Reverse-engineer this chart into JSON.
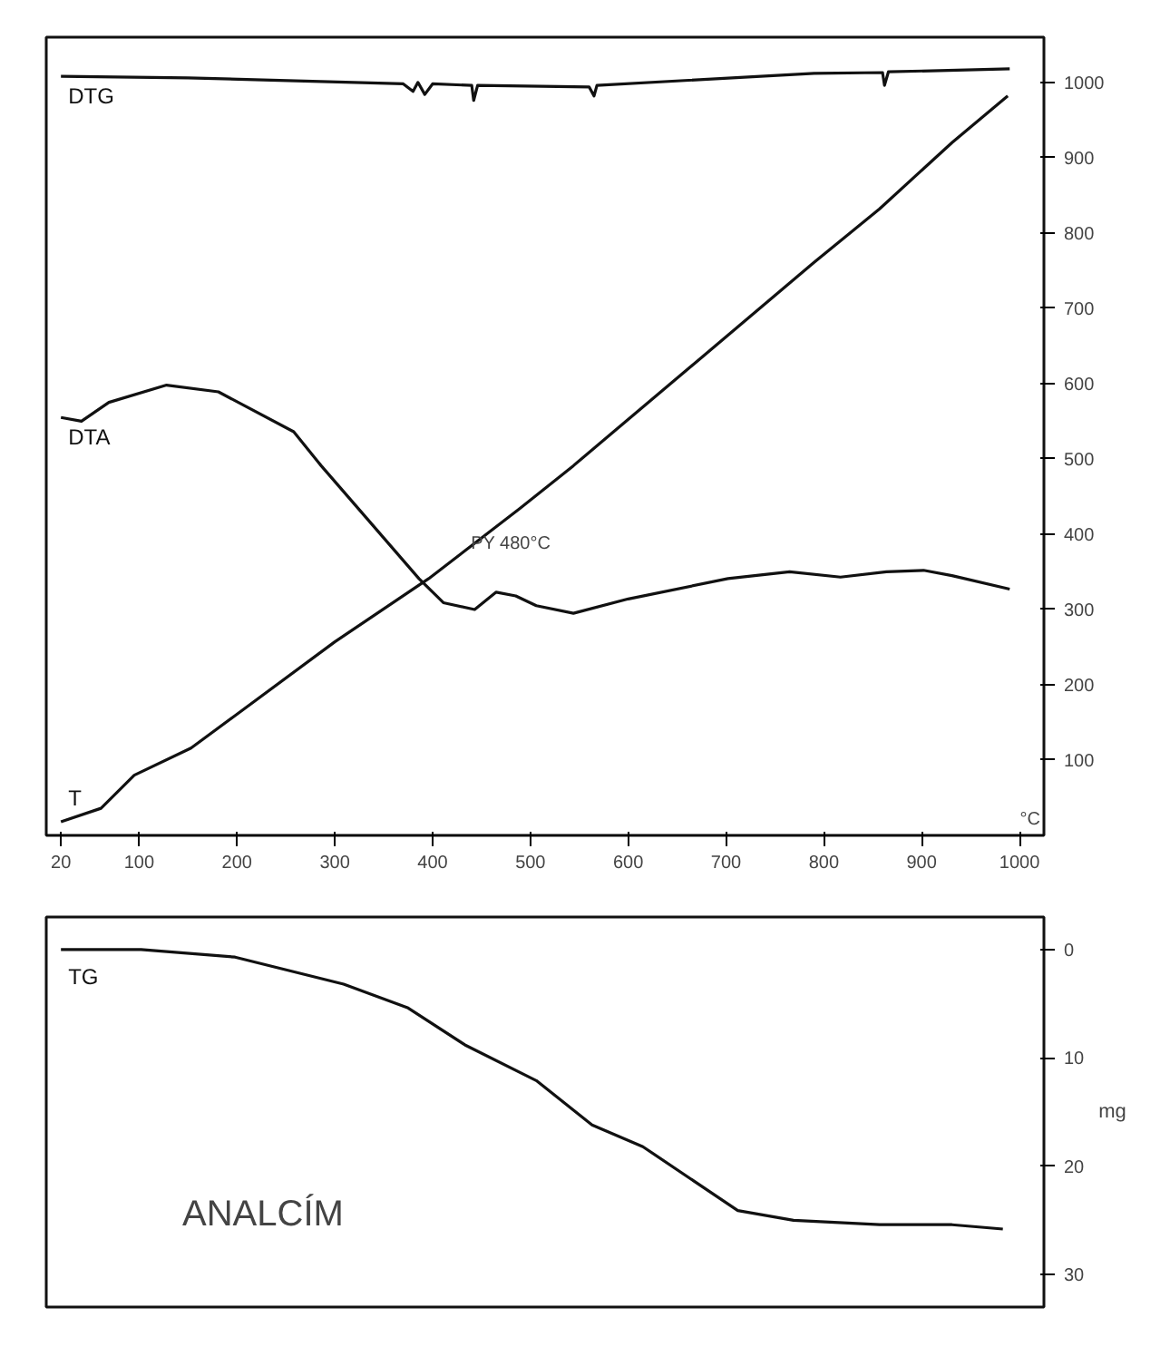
{
  "chart_data": [
    {
      "type": "line",
      "xlabel": "°C",
      "xlim": [
        5,
        1025
      ],
      "xticks": [
        20,
        100,
        200,
        300,
        400,
        500,
        600,
        700,
        800,
        900,
        1000
      ],
      "ylim": [
        0,
        1060
      ],
      "yticks": [
        100,
        200,
        300,
        400,
        500,
        600,
        700,
        800,
        900,
        1000
      ],
      "grid": false,
      "legend": false,
      "line_style": "solid",
      "marker": "none",
      "annotations": [
        {
          "text": "PY 480°C",
          "x": 480,
          "y": 330
        }
      ],
      "series": [
        {
          "name": "DTG",
          "color": "#111111",
          "x": [
            20,
            150,
            370,
            380,
            385,
            392,
            400,
            440,
            442,
            446,
            560,
            565,
            568,
            790,
            860,
            862,
            866,
            990
          ],
          "values": [
            1008,
            1006,
            998,
            988,
            1000,
            984,
            998,
            996,
            976,
            996,
            994,
            982,
            996,
            1012,
            1013,
            996,
            1014,
            1018
          ]
        },
        {
          "name": "DTA",
          "color": "#111111",
          "x": [
            20,
            41,
            69,
            128,
            181,
            258,
            286,
            330,
            386,
            411,
            443,
            465,
            485,
            506,
            544,
            600,
            702,
            765,
            817,
            864,
            902,
            931,
            990
          ],
          "values": [
            555,
            550,
            575,
            598,
            589,
            536,
            491,
            425,
            341,
            309,
            300,
            323,
            318,
            305,
            295,
            314,
            341,
            350,
            343,
            350,
            352,
            345,
            327
          ]
        },
        {
          "name": "T",
          "color": "#111111",
          "x": [
            20,
            61,
            95,
            153,
            198,
            300,
            396,
            489,
            544,
            585,
            679,
            790,
            857,
            931,
            988
          ],
          "values": [
            18,
            36,
            80,
            116,
            159,
            257,
            341,
            434,
            491,
            536,
            639,
            761,
            832,
            920,
            982
          ]
        }
      ]
    },
    {
      "type": "line",
      "ylabel": "mg",
      "xlim": [
        5,
        1025
      ],
      "ylim": [
        33,
        -3
      ],
      "yticks": [
        0,
        10,
        20,
        30
      ],
      "tick_labels": "y",
      "grid": false,
      "legend": false,
      "line_style": "solid",
      "marker": "none",
      "annotations": [
        "ANALCÍM"
      ],
      "series": [
        {
          "name": "TG",
          "color": "#111111",
          "x": [
            20,
            102,
            198,
            309,
            375,
            433,
            506,
            563,
            615,
            712,
            769,
            857,
            931,
            983
          ],
          "values": [
            0,
            0,
            0.7,
            3.2,
            5.4,
            8.8,
            12.1,
            16.2,
            18.2,
            24.1,
            25.0,
            25.4,
            25.4,
            25.8
          ]
        }
      ]
    }
  ]
}
